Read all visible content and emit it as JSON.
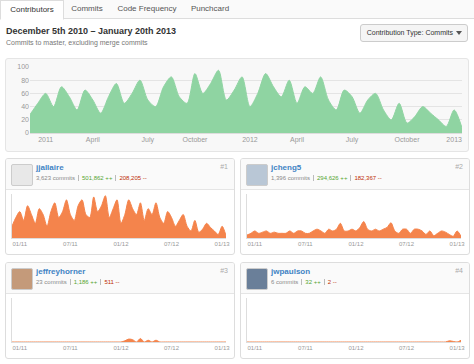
{
  "page": {
    "tabs": [
      "Contributors",
      "Commits",
      "Code Frequency",
      "Punchcard"
    ],
    "active_tab": "Contributors",
    "title": "December 5th 2010 – January 20th 2013",
    "subtitle": "Commits to master, excluding merge commits",
    "contribution_type": "Contribution Type: Commits"
  },
  "chart_data": [
    {
      "type": "area",
      "color": "#8fd4a2",
      "line_style": "smooth",
      "grid": true,
      "categories": [
        null,
        null,
        "2011",
        null,
        null,
        null,
        null,
        null,
        "April",
        null,
        null,
        null,
        null,
        null,
        null,
        "July",
        null,
        null,
        null,
        null,
        null,
        "October",
        null,
        null,
        null,
        null,
        null,
        null,
        "2012",
        null,
        null,
        null,
        null,
        null,
        "April",
        null,
        null,
        null,
        null,
        null,
        null,
        "July",
        null,
        null,
        null,
        null,
        null,
        null,
        "October",
        null,
        null,
        null,
        null,
        null,
        "2013",
        null
      ],
      "values": [
        28,
        45,
        60,
        40,
        70,
        55,
        35,
        65,
        50,
        30,
        55,
        75,
        45,
        60,
        80,
        50,
        40,
        70,
        85,
        55,
        45,
        90,
        60,
        75,
        95,
        50,
        65,
        85,
        40,
        60,
        90,
        70,
        55,
        80,
        45,
        70,
        60,
        85,
        50,
        35,
        65,
        55,
        30,
        50,
        60,
        35,
        20,
        45,
        15,
        25,
        40,
        30,
        20,
        10,
        35,
        8
      ],
      "ylim": [
        0,
        100
      ],
      "yticks": [
        0,
        20,
        40,
        60,
        80,
        100
      ]
    },
    {
      "type": "area",
      "color": "#f4844c",
      "line_style": "smooth",
      "grid": false,
      "tick_labels": "x",
      "contributor": {
        "name": "jjallaire",
        "commits": "3,623 commits",
        "additions": "501,862 ++",
        "deletions": "208,205 --",
        "rank": "#1"
      },
      "categories": [
        null,
        null,
        "01/11",
        null,
        null,
        null,
        null,
        null,
        null,
        null,
        null,
        null,
        null,
        null,
        null,
        "07/11",
        null,
        null,
        null,
        null,
        null,
        null,
        null,
        null,
        null,
        null,
        null,
        null,
        "01/12",
        null,
        null,
        null,
        null,
        null,
        null,
        null,
        null,
        null,
        null,
        null,
        null,
        "07/12",
        null,
        null,
        null,
        null,
        null,
        null,
        null,
        null,
        null,
        null,
        null,
        null,
        "01/13",
        null
      ],
      "values": [
        20,
        35,
        45,
        30,
        55,
        40,
        25,
        50,
        40,
        20,
        45,
        60,
        35,
        45,
        65,
        40,
        30,
        55,
        65,
        40,
        35,
        70,
        45,
        55,
        72,
        35,
        50,
        65,
        25,
        40,
        65,
        50,
        40,
        60,
        30,
        50,
        40,
        60,
        35,
        25,
        45,
        35,
        20,
        30,
        40,
        20,
        12,
        30,
        10,
        15,
        25,
        18,
        12,
        6,
        20,
        4
      ],
      "ylim": [
        0,
        75
      ]
    },
    {
      "type": "area",
      "color": "#f4844c",
      "line_style": "smooth",
      "grid": false,
      "tick_labels": "x",
      "contributor": {
        "name": "jcheng5",
        "commits": "1,396 commits",
        "additions": "294,626 ++",
        "deletions": "182,367 --",
        "rank": "#2"
      },
      "categories": [
        null,
        null,
        "01/11",
        null,
        null,
        null,
        null,
        null,
        null,
        null,
        null,
        null,
        null,
        null,
        null,
        "07/11",
        null,
        null,
        null,
        null,
        null,
        null,
        null,
        null,
        null,
        null,
        null,
        null,
        "01/12",
        null,
        null,
        null,
        null,
        null,
        null,
        null,
        null,
        null,
        null,
        null,
        null,
        "07/12",
        null,
        null,
        null,
        null,
        null,
        null,
        null,
        null,
        null,
        null,
        null,
        null,
        "01/13",
        null
      ],
      "values": [
        5,
        8,
        12,
        8,
        10,
        12,
        8,
        10,
        8,
        8,
        8,
        12,
        8,
        12,
        12,
        8,
        8,
        12,
        15,
        12,
        8,
        15,
        12,
        15,
        25,
        12,
        12,
        15,
        12,
        18,
        28,
        15,
        12,
        15,
        12,
        15,
        18,
        26,
        12,
        8,
        15,
        15,
        8,
        15,
        15,
        12,
        6,
        12,
        4,
        8,
        12,
        10,
        6,
        3,
        12,
        3
      ],
      "ylim": [
        0,
        75
      ]
    },
    {
      "type": "area",
      "color": "#f4844c",
      "line_style": "smooth",
      "grid": false,
      "tick_labels": "x",
      "contributor": {
        "name": "jeffreyhorner",
        "commits": "23 commits",
        "additions": "1,186 ++",
        "deletions": "511 --",
        "rank": "#3"
      },
      "categories": [
        null,
        null,
        "01/11",
        null,
        null,
        null,
        null,
        null,
        null,
        null,
        null,
        null,
        null,
        null,
        null,
        "07/11",
        null,
        null,
        null,
        null,
        null,
        null,
        null,
        null,
        null,
        null,
        null,
        null,
        "01/12",
        null,
        null,
        null,
        null,
        null,
        null,
        null,
        null,
        null,
        null,
        null,
        null,
        "07/12",
        null,
        null,
        null,
        null,
        null,
        null,
        null,
        null,
        null,
        null,
        null,
        null,
        "01/13",
        null
      ],
      "values": [
        0,
        0,
        0,
        0,
        0,
        0,
        0,
        0,
        0,
        0,
        0,
        0,
        0,
        0,
        0,
        0,
        0,
        0,
        0,
        0,
        0,
        0,
        0,
        0,
        0,
        0,
        0,
        0,
        0,
        2,
        5,
        4,
        0,
        6,
        0,
        3,
        0,
        3,
        0,
        0,
        0,
        0,
        0,
        0,
        0,
        0,
        0,
        0,
        0,
        0,
        0,
        0,
        0,
        0,
        0,
        0
      ],
      "ylim": [
        0,
        75
      ]
    },
    {
      "type": "area",
      "color": "#f4844c",
      "line_style": "smooth",
      "grid": false,
      "tick_labels": "x",
      "contributor": {
        "name": "jwpaulson",
        "commits": "6 commits",
        "additions": "32 ++",
        "deletions": "2 --",
        "rank": "#4"
      },
      "categories": [
        null,
        null,
        "01/11",
        null,
        null,
        null,
        null,
        null,
        null,
        null,
        null,
        null,
        null,
        null,
        null,
        "07/11",
        null,
        null,
        null,
        null,
        null,
        null,
        null,
        null,
        null,
        null,
        null,
        null,
        "01/12",
        null,
        null,
        null,
        null,
        null,
        null,
        null,
        null,
        null,
        null,
        null,
        null,
        "07/12",
        null,
        null,
        null,
        null,
        null,
        null,
        null,
        null,
        null,
        null,
        null,
        null,
        "01/13",
        null
      ],
      "values": [
        0,
        0,
        0,
        0,
        0,
        0,
        0,
        0,
        0,
        0,
        0,
        0,
        0,
        0,
        0,
        0,
        0,
        0,
        0,
        0,
        0,
        0,
        0,
        0,
        0,
        0,
        0,
        0,
        0,
        0,
        0,
        0,
        0,
        0,
        0,
        0,
        0,
        0,
        0,
        0,
        0,
        0,
        0,
        0,
        0,
        0,
        0,
        0,
        0,
        0,
        0,
        0,
        2,
        1,
        0,
        3
      ],
      "ylim": [
        0,
        75
      ]
    }
  ]
}
